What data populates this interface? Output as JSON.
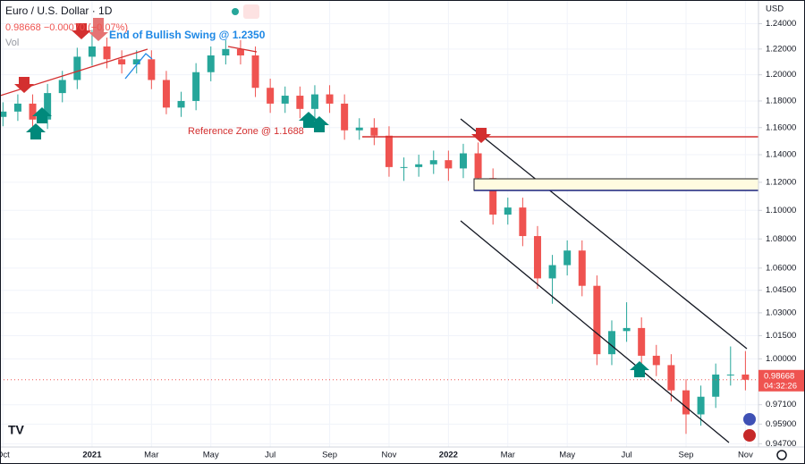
{
  "chart_data": {
    "type": "candlestick",
    "header": {
      "symbol": "Euro / U.S. Dollar · 1D",
      "quote": "0.98668 −0.00070 (−0.07%)",
      "volume": "Vol"
    },
    "currency": "USD",
    "annotations": [
      "End of Bullish Swing @ 1.2350",
      "Reference Zone @ 1.1688"
    ],
    "log_scale": true,
    "grid": true,
    "up_color": "#26a69a",
    "down_color": "#ef5350",
    "xlim": [
      -0.1,
      25.44
    ],
    "xticks": [
      {
        "value": 0,
        "label": "Oct"
      },
      {
        "value": 3,
        "label": "2021"
      },
      {
        "value": 5,
        "label": "Mar"
      },
      {
        "value": 7,
        "label": "May"
      },
      {
        "value": 9,
        "label": "Jul"
      },
      {
        "value": 11,
        "label": "Sep"
      },
      {
        "value": 13,
        "label": "Nov"
      },
      {
        "value": 15,
        "label": "2022"
      },
      {
        "value": 17,
        "label": "Mar"
      },
      {
        "value": 19,
        "label": "May"
      },
      {
        "value": 21,
        "label": "Jul"
      },
      {
        "value": 23,
        "label": "Sep"
      },
      {
        "value": 25,
        "label": "Nov"
      }
    ],
    "ylim": [
      0.945,
      1.259
    ],
    "yticks": [
      {
        "value": 1.24,
        "label": "1.24000"
      },
      {
        "value": 1.22,
        "label": "1.22000"
      },
      {
        "value": 1.2,
        "label": "1.20000"
      },
      {
        "value": 1.18,
        "label": "1.18000"
      },
      {
        "value": 1.16,
        "label": "1.16000"
      },
      {
        "value": 1.14,
        "label": "1.14000"
      },
      {
        "value": 1.12,
        "label": "1.12000"
      },
      {
        "value": 1.1,
        "label": "1.10000"
      },
      {
        "value": 1.08,
        "label": "1.08000"
      },
      {
        "value": 1.06,
        "label": "1.06000"
      },
      {
        "value": 1.045,
        "label": "1.04500"
      },
      {
        "value": 1.03,
        "label": "1.03000"
      },
      {
        "value": 1.015,
        "label": "1.01500"
      },
      {
        "value": 1.0,
        "label": "1.00000"
      },
      {
        "value": 0.971,
        "label": "0.97100"
      },
      {
        "value": 0.959,
        "label": "0.95900"
      },
      {
        "value": 0.947,
        "label": "0.94700"
      }
    ],
    "last_price": 0.98668,
    "countdown": "04:32:26",
    "x": [
      0,
      0.5,
      1,
      1.5,
      2,
      2.5,
      3,
      3.5,
      4,
      4.5,
      5,
      5.5,
      6,
      6.5,
      7,
      7.5,
      8,
      8.5,
      9,
      9.5,
      10,
      10.5,
      11,
      11.5,
      12,
      12.5,
      13,
      13.5,
      14,
      14.5,
      15,
      15.5,
      16,
      16.5,
      17,
      17.5,
      18,
      18.5,
      19,
      19.5,
      20,
      20.5,
      21,
      21.5,
      22,
      22.5,
      23,
      23.5,
      24,
      24.5,
      25
    ],
    "open": [
      1.168,
      1.172,
      1.178,
      1.166,
      1.186,
      1.196,
      1.214,
      1.222,
      1.212,
      1.208,
      1.212,
      1.196,
      1.175,
      1.18,
      1.202,
      1.215,
      1.22,
      1.215,
      1.19,
      1.178,
      1.184,
      1.174,
      1.185,
      1.178,
      1.158,
      1.16,
      1.154,
      1.131,
      1.131,
      1.133,
      1.136,
      1.13,
      1.141,
      1.123,
      1.097,
      1.102,
      1.082,
      1.053,
      1.062,
      1.072,
      1.048,
      1.003,
      1.018,
      1.02,
      1.002,
      0.996,
      0.98,
      0.965,
      0.976,
      0.99,
      0.99
    ],
    "high": [
      1.179,
      1.185,
      1.185,
      1.193,
      1.203,
      1.221,
      1.235,
      1.229,
      1.219,
      1.219,
      1.219,
      1.203,
      1.187,
      1.209,
      1.222,
      1.227,
      1.227,
      1.222,
      1.197,
      1.191,
      1.191,
      1.192,
      1.192,
      1.185,
      1.167,
      1.167,
      1.161,
      1.138,
      1.14,
      1.143,
      1.143,
      1.148,
      1.149,
      1.13,
      1.109,
      1.109,
      1.089,
      1.069,
      1.079,
      1.079,
      1.055,
      1.025,
      1.037,
      1.027,
      1.009,
      1.003,
      0.987,
      0.983,
      0.997,
      1.008,
      1.005
    ],
    "low": [
      1.161,
      1.165,
      1.159,
      1.159,
      1.179,
      1.189,
      1.207,
      1.205,
      1.201,
      1.201,
      1.189,
      1.17,
      1.168,
      1.173,
      1.195,
      1.208,
      1.208,
      1.183,
      1.171,
      1.171,
      1.167,
      1.167,
      1.171,
      1.151,
      1.151,
      1.147,
      1.124,
      1.121,
      1.124,
      1.126,
      1.121,
      1.123,
      1.116,
      1.09,
      1.09,
      1.075,
      1.046,
      1.036,
      1.055,
      1.041,
      0.996,
      0.996,
      1.011,
      0.995,
      0.989,
      0.973,
      0.953,
      0.958,
      0.969,
      0.983,
      0.98
    ],
    "close": [
      1.172,
      1.178,
      1.166,
      1.186,
      1.196,
      1.214,
      1.222,
      1.212,
      1.208,
      1.212,
      1.196,
      1.175,
      1.18,
      1.202,
      1.215,
      1.22,
      1.215,
      1.19,
      1.178,
      1.184,
      1.174,
      1.185,
      1.178,
      1.158,
      1.16,
      1.154,
      1.131,
      1.131,
      1.133,
      1.136,
      1.13,
      1.141,
      1.123,
      1.097,
      1.102,
      1.082,
      1.053,
      1.062,
      1.072,
      1.048,
      1.003,
      1.018,
      1.02,
      1.002,
      0.996,
      0.98,
      0.965,
      0.976,
      0.99,
      0.99,
      0.98668
    ]
  }
}
